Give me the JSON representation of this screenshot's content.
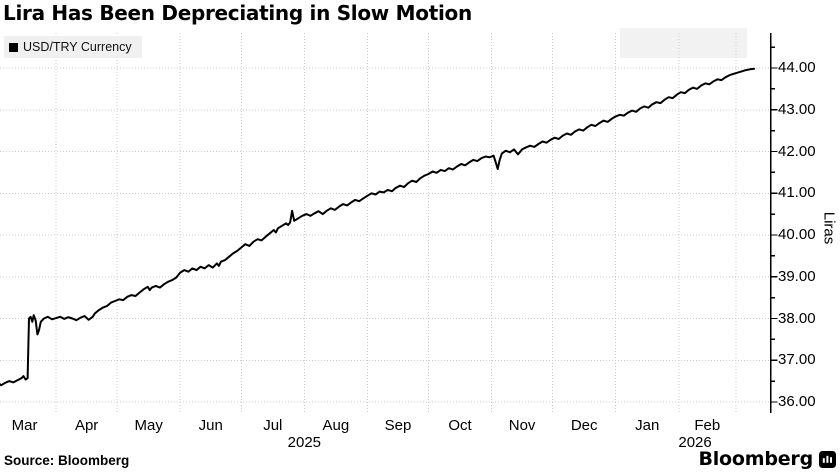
{
  "title": "Lira Has Been Depreciating in Slow Motion",
  "legend": {
    "label": "USD/TRY Currency",
    "marker_color": "#000000",
    "bg": "#f0f0f0"
  },
  "source": "Source: Bloomberg",
  "brand": {
    "name": "Bloomberg",
    "icon": "bloomberg-terminal-icon"
  },
  "chart_data": {
    "type": "line",
    "title": "Lira Has Been Depreciating in Slow Motion",
    "series_name": "USD/TRY Currency",
    "xlabel": "",
    "ylabel": "Liras",
    "ylim": [
      36,
      44
    ],
    "y_ticks": [
      "44.00",
      "43.00",
      "42.00",
      "41.00",
      "40.00",
      "39.00",
      "38.00",
      "37.00",
      "36.00"
    ],
    "x_months": [
      "Mar",
      "Apr",
      "May",
      "Jun",
      "Jul",
      "Aug",
      "Sep",
      "Oct",
      "Nov",
      "Dec",
      "Jan",
      "Feb"
    ],
    "x_years": [
      "2025",
      "2026"
    ],
    "month_start_days": [
      31,
      61,
      92,
      122,
      153,
      184,
      214,
      245,
      275,
      306,
      337,
      365
    ],
    "grid": "dotted",
    "legend_position": "top-left",
    "axis_side": "right",
    "line_color": "#000000",
    "grid_color": "#cccccc",
    "points": [
      [
        3,
        36.44
      ],
      [
        4,
        36.4
      ],
      [
        6,
        36.46
      ],
      [
        8,
        36.5
      ],
      [
        10,
        36.47
      ],
      [
        12,
        36.52
      ],
      [
        14,
        36.57
      ],
      [
        15,
        36.62
      ],
      [
        16,
        36.54
      ],
      [
        17,
        36.57
      ],
      [
        17.7,
        38.0
      ],
      [
        18.5,
        38.04
      ],
      [
        19.3,
        37.92
      ],
      [
        20,
        38.08
      ],
      [
        21,
        37.95
      ],
      [
        21.8,
        37.62
      ],
      [
        22.6,
        37.72
      ],
      [
        23.5,
        37.92
      ],
      [
        25,
        38.0
      ],
      [
        27,
        38.04
      ],
      [
        29,
        37.98
      ],
      [
        31,
        38.01
      ],
      [
        33,
        38.04
      ],
      [
        35,
        37.99
      ],
      [
        37,
        38.03
      ],
      [
        39,
        38.0
      ],
      [
        41,
        37.96
      ],
      [
        43,
        38.02
      ],
      [
        45,
        38.06
      ],
      [
        47,
        37.97
      ],
      [
        49,
        38.04
      ],
      [
        50,
        38.12
      ],
      [
        52,
        38.2
      ],
      [
        54,
        38.26
      ],
      [
        56,
        38.3
      ],
      [
        58,
        38.38
      ],
      [
        60,
        38.42
      ],
      [
        62,
        38.46
      ],
      [
        64,
        38.44
      ],
      [
        66,
        38.52
      ],
      [
        68,
        38.56
      ],
      [
        70,
        38.54
      ],
      [
        72,
        38.62
      ],
      [
        74,
        38.7
      ],
      [
        76,
        38.76
      ],
      [
        77,
        38.68
      ],
      [
        78,
        38.74
      ],
      [
        80,
        38.78
      ],
      [
        82,
        38.74
      ],
      [
        84,
        38.82
      ],
      [
        86,
        38.88
      ],
      [
        88,
        38.92
      ],
      [
        90,
        38.98
      ],
      [
        92,
        39.1
      ],
      [
        94,
        39.16
      ],
      [
        96,
        39.12
      ],
      [
        98,
        39.2
      ],
      [
        100,
        39.16
      ],
      [
        102,
        39.24
      ],
      [
        104,
        39.2
      ],
      [
        106,
        39.28
      ],
      [
        108,
        39.22
      ],
      [
        110,
        39.32
      ],
      [
        111,
        39.26
      ],
      [
        112,
        39.36
      ],
      [
        114,
        39.4
      ],
      [
        116,
        39.48
      ],
      [
        118,
        39.56
      ],
      [
        120,
        39.62
      ],
      [
        122,
        39.7
      ],
      [
        124,
        39.78
      ],
      [
        126,
        39.74
      ],
      [
        128,
        39.84
      ],
      [
        130,
        39.9
      ],
      [
        132,
        39.87
      ],
      [
        134,
        39.96
      ],
      [
        136,
        40.04
      ],
      [
        138,
        40.12
      ],
      [
        139,
        40.06
      ],
      [
        140,
        40.16
      ],
      [
        142,
        40.22
      ],
      [
        144,
        40.28
      ],
      [
        145,
        40.24
      ],
      [
        146,
        40.3
      ],
      [
        147,
        40.58
      ],
      [
        148,
        40.34
      ],
      [
        150,
        40.4
      ],
      [
        152,
        40.46
      ],
      [
        154,
        40.5
      ],
      [
        156,
        40.46
      ],
      [
        158,
        40.52
      ],
      [
        160,
        40.57
      ],
      [
        162,
        40.5
      ],
      [
        164,
        40.58
      ],
      [
        166,
        40.64
      ],
      [
        168,
        40.6
      ],
      [
        170,
        40.68
      ],
      [
        172,
        40.74
      ],
      [
        174,
        40.71
      ],
      [
        176,
        40.78
      ],
      [
        178,
        40.84
      ],
      [
        180,
        40.81
      ],
      [
        182,
        40.88
      ],
      [
        184,
        40.94
      ],
      [
        186,
        41.0
      ],
      [
        188,
        40.97
      ],
      [
        190,
        41.04
      ],
      [
        192,
        41.02
      ],
      [
        194,
        41.08
      ],
      [
        196,
        41.05
      ],
      [
        198,
        41.13
      ],
      [
        200,
        41.18
      ],
      [
        202,
        41.15
      ],
      [
        204,
        41.24
      ],
      [
        206,
        41.3
      ],
      [
        208,
        41.27
      ],
      [
        210,
        41.36
      ],
      [
        212,
        41.42
      ],
      [
        214,
        41.46
      ],
      [
        216,
        41.52
      ],
      [
        218,
        41.49
      ],
      [
        220,
        41.56
      ],
      [
        222,
        41.53
      ],
      [
        224,
        41.6
      ],
      [
        226,
        41.57
      ],
      [
        228,
        41.64
      ],
      [
        230,
        41.7
      ],
      [
        232,
        41.67
      ],
      [
        234,
        41.74
      ],
      [
        236,
        41.8
      ],
      [
        238,
        41.77
      ],
      [
        240,
        41.84
      ],
      [
        242,
        41.88
      ],
      [
        244,
        41.86
      ],
      [
        246,
        41.9
      ],
      [
        247,
        41.75
      ],
      [
        248,
        41.58
      ],
      [
        249,
        41.8
      ],
      [
        250,
        41.95
      ],
      [
        252,
        42.02
      ],
      [
        254,
        41.98
      ],
      [
        256,
        42.05
      ],
      [
        258,
        41.93
      ],
      [
        260,
        42.05
      ],
      [
        262,
        42.1
      ],
      [
        264,
        42.14
      ],
      [
        266,
        42.11
      ],
      [
        268,
        42.18
      ],
      [
        270,
        42.24
      ],
      [
        272,
        42.21
      ],
      [
        274,
        42.28
      ],
      [
        276,
        42.33
      ],
      [
        278,
        42.3
      ],
      [
        280,
        42.38
      ],
      [
        282,
        42.43
      ],
      [
        284,
        42.4
      ],
      [
        286,
        42.48
      ],
      [
        288,
        42.53
      ],
      [
        290,
        42.5
      ],
      [
        292,
        42.58
      ],
      [
        294,
        42.64
      ],
      [
        296,
        42.61
      ],
      [
        298,
        42.68
      ],
      [
        300,
        42.74
      ],
      [
        302,
        42.71
      ],
      [
        304,
        42.78
      ],
      [
        306,
        42.84
      ],
      [
        308,
        42.88
      ],
      [
        310,
        42.86
      ],
      [
        312,
        42.93
      ],
      [
        314,
        42.98
      ],
      [
        316,
        42.95
      ],
      [
        318,
        43.03
      ],
      [
        320,
        43.08
      ],
      [
        322,
        43.05
      ],
      [
        324,
        43.13
      ],
      [
        326,
        43.18
      ],
      [
        328,
        43.16
      ],
      [
        330,
        43.24
      ],
      [
        332,
        43.3
      ],
      [
        334,
        43.28
      ],
      [
        336,
        43.36
      ],
      [
        338,
        43.42
      ],
      [
        340,
        43.4
      ],
      [
        342,
        43.48
      ],
      [
        344,
        43.53
      ],
      [
        346,
        43.5
      ],
      [
        348,
        43.58
      ],
      [
        350,
        43.63
      ],
      [
        352,
        43.61
      ],
      [
        354,
        43.68
      ],
      [
        356,
        43.73
      ],
      [
        358,
        43.71
      ],
      [
        360,
        43.78
      ],
      [
        362,
        43.83
      ],
      [
        364,
        43.86
      ],
      [
        366,
        43.89
      ],
      [
        368,
        43.92
      ],
      [
        370,
        43.95
      ],
      [
        372,
        43.97
      ],
      [
        374,
        43.98
      ]
    ]
  }
}
